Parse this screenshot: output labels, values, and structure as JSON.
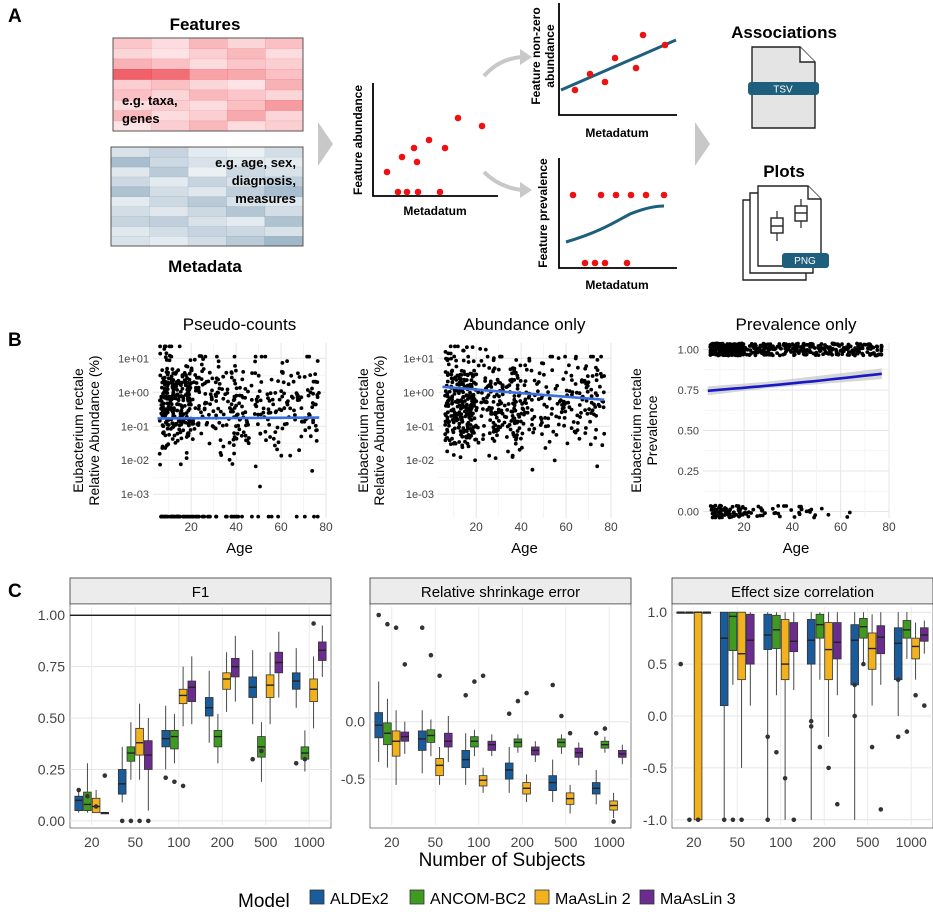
{
  "panel_labels": [
    "A",
    "B",
    "C"
  ],
  "panelA": {
    "features_title": "Features",
    "features_note": [
      "e.g. taxa,",
      "genes"
    ],
    "metadata_title": "Metadata",
    "metadata_note": [
      "e.g. age, sex,",
      "diagnosis,",
      "measures"
    ],
    "feature_abundance": "Feature abundance",
    "metadatum": "Metadatum",
    "nonzero_label": [
      "Feature non-zero",
      "abundance"
    ],
    "prevalence_label": "Feature prevalence",
    "associations_title": "Associations",
    "tsv_label": "TSV",
    "plots_title": "Plots",
    "png_label": "PNG",
    "colors": {
      "red_dot": "#ee1111",
      "teal_line": "#1d5f7c",
      "feature_red": "#f4837f",
      "metadata_blue": "#7d9fb3",
      "arrow_grey": "#c8c8c8"
    }
  },
  "panelB": {
    "xlabel": "Age",
    "ylabel_species": "Eubacterium rectale",
    "plots": [
      {
        "title": "Pseudo-counts",
        "ylabel": "Relative Abundance (%)",
        "ytick_labels": [
          "1e+01",
          "1e+00",
          "1e-01",
          "1e-02",
          "1e-03"
        ],
        "xtick_labels": [
          "20",
          "40",
          "60",
          "80"
        ],
        "fit_color": "#3b6fe0"
      },
      {
        "title": "Abundance only",
        "ylabel": "Relative Abundance (%)",
        "ytick_labels": [
          "1e+01",
          "1e+00",
          "1e-01",
          "1e-02",
          "1e-03"
        ],
        "xtick_labels": [
          "20",
          "40",
          "60",
          "80"
        ],
        "fit_color": "#3b6fe0"
      },
      {
        "title": "Prevalence only",
        "ylabel": "Prevalence",
        "ytick_labels": [
          "1.00",
          "0.75",
          "0.50",
          "0.25",
          "0.00"
        ],
        "xtick_labels": [
          "20",
          "40",
          "60",
          "80"
        ],
        "fit_color": "#1818c8"
      }
    ]
  },
  "chart_data": [
    {
      "type": "scatter",
      "title": "Pseudo-counts",
      "xlabel": "Age",
      "ylabel": "Eubacterium rectale Relative Abundance (%)",
      "y_scale": "log",
      "xlim": [
        3,
        80
      ],
      "fit_line": {
        "x": [
          5,
          77
        ],
        "y": [
          0.17,
          0.18
        ]
      }
    },
    {
      "type": "scatter",
      "title": "Abundance only",
      "xlabel": "Age",
      "ylabel": "Eubacterium rectale Relative Abundance (%)",
      "y_scale": "log",
      "xlim": [
        3,
        80
      ],
      "fit_line": {
        "x": [
          5,
          77
        ],
        "y": [
          1.45,
          0.6
        ]
      }
    },
    {
      "type": "scatter",
      "title": "Prevalence only",
      "xlabel": "Age",
      "ylabel": "Eubacterium rectale Prevalence",
      "xlim": [
        3,
        80
      ],
      "ylim": [
        -0.04,
        1.04
      ],
      "fit_line": {
        "x": [
          5,
          77
        ],
        "y": [
          0.745,
          0.85
        ]
      }
    },
    {
      "type": "boxplot",
      "facets": [
        {
          "title": "F1",
          "ylim": [
            -0.02,
            1.04
          ],
          "yticks": [
            "0.00",
            "0.25",
            "0.50",
            "0.75",
            "1.00"
          ],
          "reference_line": 1.0,
          "series": [
            {
              "name": "ALDEx2",
              "medians": [
                0.1,
                0.18,
                0.4,
                0.55,
                0.65,
                0.68
              ]
            },
            {
              "name": "ANCOM-BC2",
              "medians": [
                0.08,
                0.33,
                0.41,
                0.41,
                0.36,
                0.33
              ]
            },
            {
              "name": "MaAsLin 2",
              "medians": [
                0.07,
                0.38,
                0.61,
                0.69,
                0.66,
                0.64
              ]
            },
            {
              "name": "MaAsLin 3",
              "medians": [
                0.04,
                0.32,
                0.65,
                0.75,
                0.77,
                0.83
              ]
            }
          ]
        },
        {
          "title": "Relative shrinkage error",
          "ylim": [
            -0.9,
            1.0
          ],
          "yticks": [
            "0.0",
            "-0.5"
          ],
          "series": [
            {
              "name": "ALDEx2",
              "medians": [
                -0.03,
                -0.15,
                -0.33,
                -0.42,
                -0.53,
                -0.58
              ]
            },
            {
              "name": "ANCOM-BC2",
              "medians": [
                -0.1,
                -0.12,
                -0.17,
                -0.18,
                -0.18,
                -0.2
              ]
            },
            {
              "name": "MaAsLin 2",
              "medians": [
                -0.17,
                -0.38,
                -0.51,
                -0.58,
                -0.67,
                -0.73
              ]
            },
            {
              "name": "MaAsLin 3",
              "medians": [
                -0.13,
                -0.17,
                -0.2,
                -0.25,
                -0.27,
                -0.28
              ]
            }
          ]
        },
        {
          "title": "Effect size correlation",
          "ylim": [
            -1.05,
            1.05
          ],
          "yticks": [
            "1.0",
            "0.5",
            "0.0",
            "-0.5",
            "-1.0"
          ],
          "series": [
            {
              "name": "ALDEx2",
              "medians": [
                1.0,
                0.75,
                0.78,
                0.73,
                0.73,
                0.7
              ]
            },
            {
              "name": "ANCOM-BC2",
              "medians": [
                null,
                0.96,
                0.83,
                0.88,
                0.86,
                0.83
              ]
            },
            {
              "name": "MaAsLin 2",
              "medians": [
                1.0,
                0.6,
                0.5,
                0.64,
                0.65,
                0.67
              ]
            },
            {
              "name": "MaAsLin 3",
              "medians": [
                null,
                0.73,
                0.72,
                0.71,
                0.76,
                0.78
              ]
            }
          ]
        }
      ],
      "categories": [
        "20",
        "50",
        "100",
        "200",
        "500",
        "1000"
      ],
      "xlabel": "Number of Subjects",
      "ylabel": "",
      "legend": {
        "title": "Model",
        "position": "bottom",
        "entries": [
          {
            "name": "ALDEx2",
            "color": "#1a5b9a"
          },
          {
            "name": "ANCOM-BC2",
            "color": "#3f9a22"
          },
          {
            "name": "MaAsLin 2",
            "color": "#f2b21e"
          },
          {
            "name": "MaAsLin 3",
            "color": "#6c2b8e"
          }
        ]
      }
    }
  ]
}
